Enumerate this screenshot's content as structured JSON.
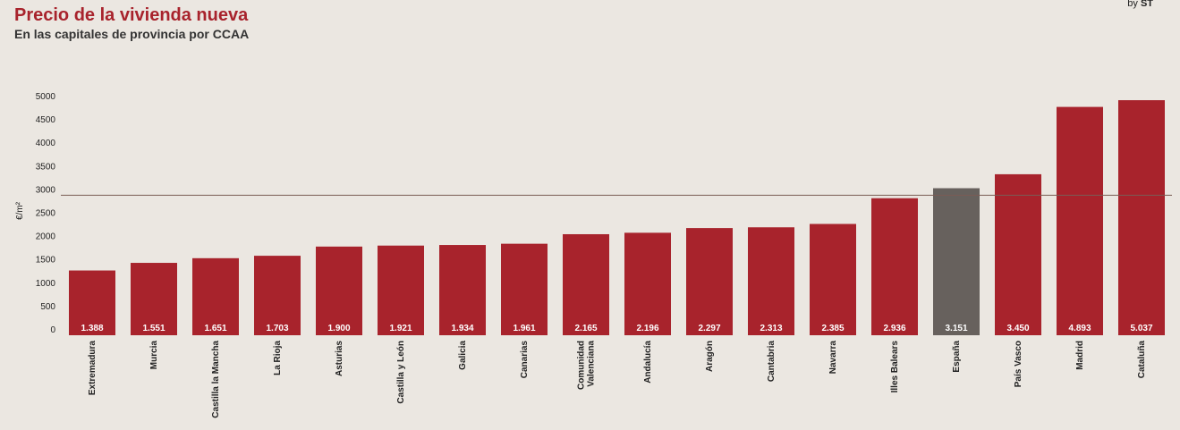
{
  "header": {
    "title": "Precio de la vivienda nueva",
    "subtitle": "En las capitales de provincia por CCAA",
    "credit_prefix": "by",
    "credit_brand": "ST"
  },
  "colors": {
    "bar": "#a8232c",
    "highlight_bar": "#67615d",
    "reference_line": "#7a5c55",
    "background": "#ebe7e1"
  },
  "chart_data": {
    "type": "bar",
    "title": "Precio de la vivienda nueva",
    "subtitle": "En las capitales de provincia por CCAA",
    "ylabel": "€/m²",
    "xlabel": "",
    "ylim": [
      0,
      5000
    ],
    "yticks": [
      0,
      500,
      1000,
      1500,
      2000,
      2500,
      3000,
      3500,
      4000,
      4500,
      5000
    ],
    "grid": false,
    "reference_line": 3000,
    "highlight_category": "España",
    "categories": [
      "Extremadura",
      "Murcia",
      "Castilla la Mancha",
      "La Rioja",
      "Asturias",
      "Castilla y León",
      "Galicia",
      "Canarias",
      "Comunidad Valenciana",
      "Andalucía",
      "Aragón",
      "Cantabria",
      "Navarra",
      "Illes Balears",
      "España",
      "País Vasco",
      "Madrid",
      "Cataluña"
    ],
    "category_lines": [
      [
        "Extremadura"
      ],
      [
        "Murcia"
      ],
      [
        "Castilla la Mancha"
      ],
      [
        "La Rioja"
      ],
      [
        "Asturias"
      ],
      [
        "Castilla y León"
      ],
      [
        "Galicia"
      ],
      [
        "Canarias"
      ],
      [
        "Comunidad",
        "Valenciana"
      ],
      [
        "Andalucía"
      ],
      [
        "Aragón"
      ],
      [
        "Cantabria"
      ],
      [
        "Navarra"
      ],
      [
        "Illes Balears"
      ],
      [
        "España"
      ],
      [
        "País Vasco"
      ],
      [
        "Madrid"
      ],
      [
        "Cataluña"
      ]
    ],
    "values": [
      1388,
      1551,
      1651,
      1703,
      1900,
      1921,
      1934,
      1961,
      2165,
      2196,
      2297,
      2313,
      2385,
      2936,
      3151,
      3450,
      4893,
      5037
    ],
    "value_labels": [
      "1.388",
      "1.551",
      "1.651",
      "1.703",
      "1.900",
      "1.921",
      "1.934",
      "1.961",
      "2.165",
      "2.196",
      "2.297",
      "2.313",
      "2.385",
      "2.936",
      "3.151",
      "3.450",
      "4.893",
      "5.037"
    ]
  }
}
